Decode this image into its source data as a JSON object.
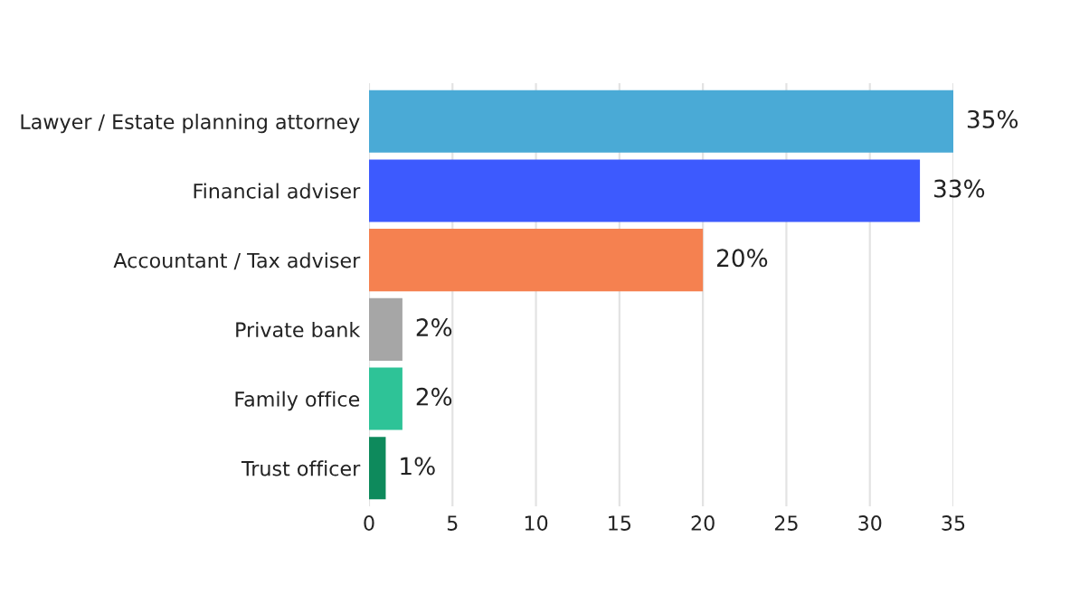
{
  "chart_data": {
    "type": "bar",
    "orientation": "horizontal",
    "categories": [
      "Lawyer / Estate planning attorney",
      "Financial adviser",
      "Accountant / Tax adviser",
      "Private bank",
      "Family office",
      "Trust officer"
    ],
    "values": [
      35,
      33,
      20,
      2,
      2,
      1
    ],
    "colors": [
      "#4aaad6",
      "#3d5afe",
      "#f58150",
      "#a6a6a6",
      "#2ec397",
      "#0e8a5c"
    ],
    "value_labels": [
      "35%",
      "33%",
      "20%",
      "2%",
      "2%",
      "1%"
    ],
    "xlim": [
      0,
      35
    ],
    "xticks": [
      0,
      5,
      10,
      15,
      20,
      25,
      30,
      35
    ],
    "grid": "x"
  }
}
